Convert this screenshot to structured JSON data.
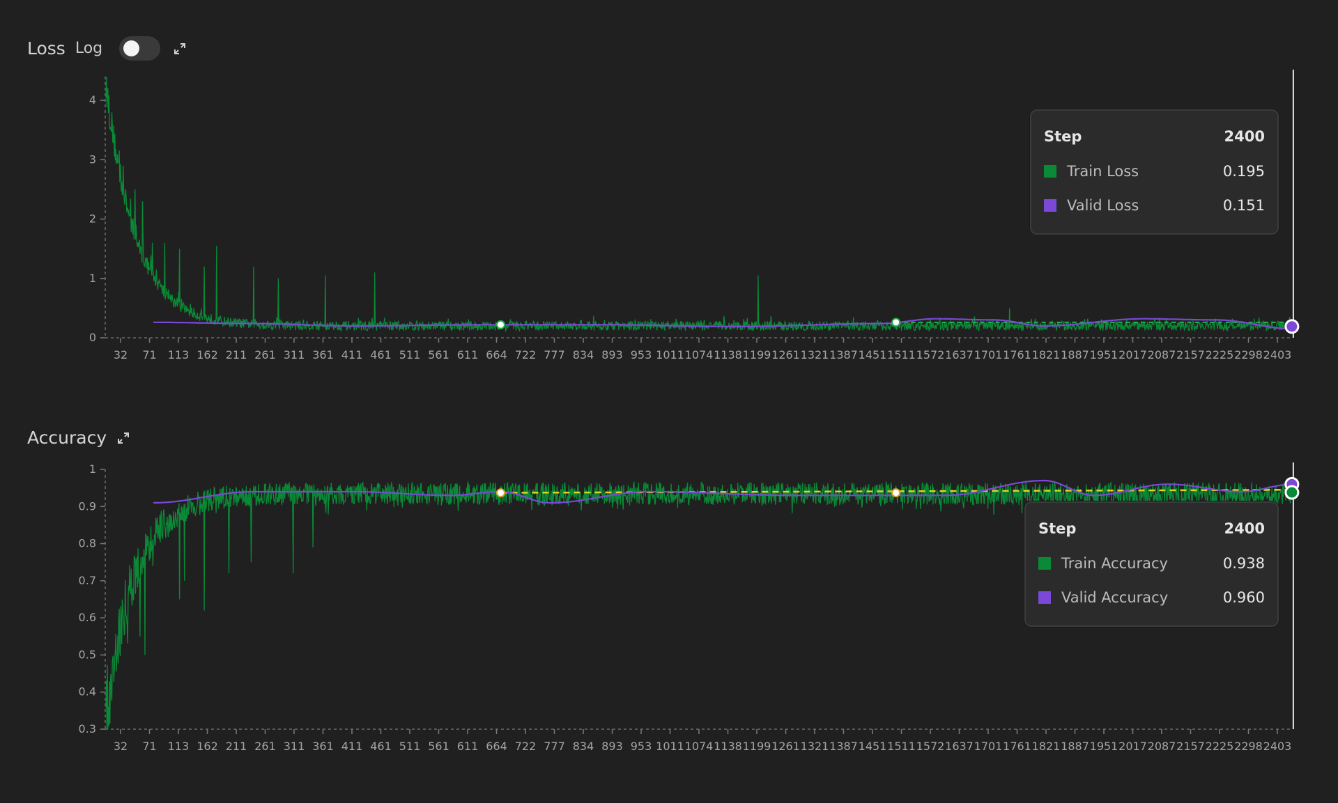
{
  "loss_panel": {
    "title": "Loss",
    "log_label": "Log",
    "log_enabled": false,
    "expand_icon": "expand-icon",
    "tooltip": {
      "step_label": "Step",
      "step_value": "2400",
      "rows": [
        {
          "label": "Train Loss",
          "value": "0.195",
          "color": "#0a8a36"
        },
        {
          "label": "Valid Loss",
          "value": "0.151",
          "color": "#7b48d8"
        }
      ]
    }
  },
  "accuracy_panel": {
    "title": "Accuracy",
    "expand_icon": "expand-icon",
    "tooltip": {
      "step_label": "Step",
      "step_value": "2400",
      "rows": [
        {
          "label": "Train Accuracy",
          "value": "0.938",
          "color": "#0a8a36"
        },
        {
          "label": "Valid Accuracy",
          "value": "0.960",
          "color": "#7b48d8"
        }
      ]
    }
  },
  "chart_data": [
    {
      "type": "line",
      "ylim": [
        0,
        4.4
      ],
      "xlim": [
        1,
        2403
      ],
      "y_ticks": [
        0,
        1,
        2,
        3,
        4
      ],
      "x_tick_labels": [
        "32",
        "71",
        "113",
        "162",
        "211",
        "261",
        "311",
        "361",
        "411",
        "461",
        "511",
        "561",
        "611",
        "664",
        "722",
        "777",
        "834",
        "893",
        "953",
        "1011",
        "1074",
        "1138",
        "1199",
        "1261",
        "1321",
        "1387",
        "1451",
        "1511",
        "1572",
        "1637",
        "1701",
        "1761",
        "1821",
        "1887",
        "1951",
        "2017",
        "2087",
        "2157",
        "2225",
        "2298",
        "2403"
      ],
      "colors": {
        "train": "#0a8a36",
        "valid": "#7b48d8",
        "trend": "#e0d21f"
      },
      "series": [
        {
          "name": "Train Loss",
          "profile": {
            "start": 4.3,
            "floor": 0.2,
            "decay_steps": 60,
            "noise": 0.08
          },
          "spikes": [
            [
              60,
              2.5
            ],
            [
              75,
              2.3
            ],
            [
              95,
              1.6
            ],
            [
              120,
              1.6
            ],
            [
              150,
              1.5
            ],
            [
              200,
              1.2
            ],
            [
              225,
              1.55
            ],
            [
              300,
              1.2
            ],
            [
              350,
              1.0
            ],
            [
              445,
              1.05
            ],
            [
              545,
              1.1
            ],
            [
              1321,
              1.05
            ],
            [
              1830,
              0.5
            ]
          ]
        },
        {
          "name": "Valid Loss",
          "points": [
            [
              97,
              0.26
            ],
            [
              300,
              0.24
            ],
            [
              500,
              0.2
            ],
            [
              777,
              0.22
            ],
            [
              1000,
              0.22
            ],
            [
              1280,
              0.19
            ],
            [
              1572,
              0.24
            ],
            [
              1680,
              0.32
            ],
            [
              1800,
              0.3
            ],
            [
              1900,
              0.2
            ],
            [
              2100,
              0.32
            ],
            [
              2250,
              0.3
            ],
            [
              2403,
              0.151
            ]
          ]
        }
      ],
      "markers": [
        [
          800,
          0.22
        ],
        [
          1600,
          0.26
        ],
        [
          2400,
          0.19
        ]
      ],
      "cursor_step": 2400
    },
    {
      "type": "line",
      "ylim": [
        0.3,
        1.0
      ],
      "xlim": [
        1,
        2403
      ],
      "y_ticks": [
        0.3,
        0.4,
        0.5,
        0.6,
        0.7,
        0.8,
        0.9,
        1
      ],
      "x_tick_labels": [
        "32",
        "71",
        "113",
        "162",
        "211",
        "261",
        "311",
        "361",
        "411",
        "461",
        "511",
        "561",
        "611",
        "664",
        "722",
        "777",
        "834",
        "893",
        "953",
        "1011",
        "1074",
        "1138",
        "1199",
        "1261",
        "1321",
        "1387",
        "1451",
        "1511",
        "1572",
        "1637",
        "1701",
        "1761",
        "1821",
        "1887",
        "1951",
        "2017",
        "2087",
        "2157",
        "2225",
        "2298",
        "2403"
      ],
      "colors": {
        "train": "#0a8a36",
        "valid": "#7b48d8",
        "trend": "#e0d21f"
      },
      "series": [
        {
          "name": "Train Accuracy",
          "profile": {
            "start": 0.35,
            "floor": 0.935,
            "decay_steps": 60,
            "noise": 0.03
          },
          "dips": [
            [
              70,
              0.55
            ],
            [
              80,
              0.5
            ],
            [
              150,
              0.65
            ],
            [
              160,
              0.7
            ],
            [
              200,
              0.62
            ],
            [
              250,
              0.72
            ],
            [
              295,
              0.75
            ],
            [
              380,
              0.72
            ],
            [
              420,
              0.79
            ]
          ]
        },
        {
          "name": "Valid Accuracy",
          "points": [
            [
              97,
              0.91
            ],
            [
              300,
              0.94
            ],
            [
              500,
              0.94
            ],
            [
              700,
              0.93
            ],
            [
              800,
              0.94
            ],
            [
              900,
              0.91
            ],
            [
              1100,
              0.94
            ],
            [
              1400,
              0.93
            ],
            [
              1700,
              0.93
            ],
            [
              1900,
              0.97
            ],
            [
              2000,
              0.93
            ],
            [
              2150,
              0.96
            ],
            [
              2300,
              0.94
            ],
            [
              2403,
              0.96
            ]
          ]
        }
      ],
      "trend": [
        [
          800,
          0.937
        ],
        [
          2403,
          0.945
        ]
      ],
      "markers": [
        [
          800,
          0.937
        ],
        [
          1600,
          0.937
        ],
        [
          2400,
          0.96
        ]
      ],
      "cursor_step": 2400
    }
  ]
}
